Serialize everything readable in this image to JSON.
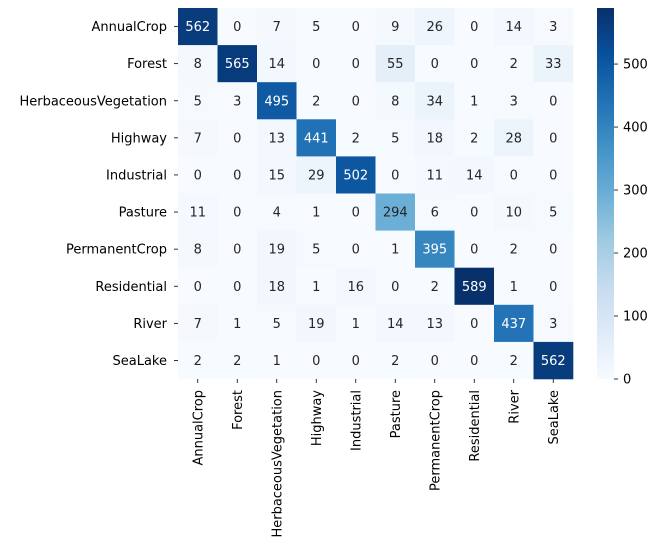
{
  "chart_data": {
    "type": "heatmap",
    "title": "",
    "xlabel": "",
    "ylabel": "",
    "x_labels": [
      "AnnualCrop",
      "Forest",
      "HerbaceousVegetation",
      "Highway",
      "Industrial",
      "Pasture",
      "PermanentCrop",
      "Residential",
      "River",
      "SeaLake"
    ],
    "y_labels": [
      "AnnualCrop",
      "Forest",
      "HerbaceousVegetation",
      "Highway",
      "Industrial",
      "Pasture",
      "PermanentCrop",
      "Residential",
      "River",
      "SeaLake"
    ],
    "values": [
      [
        562,
        0,
        7,
        5,
        0,
        9,
        26,
        0,
        14,
        3
      ],
      [
        8,
        565,
        14,
        0,
        0,
        55,
        0,
        0,
        2,
        33
      ],
      [
        5,
        3,
        495,
        2,
        0,
        8,
        34,
        1,
        3,
        0
      ],
      [
        7,
        0,
        13,
        441,
        2,
        5,
        18,
        2,
        28,
        0
      ],
      [
        0,
        0,
        15,
        29,
        502,
        0,
        11,
        14,
        0,
        0
      ],
      [
        11,
        0,
        4,
        1,
        0,
        294,
        6,
        0,
        10,
        5
      ],
      [
        8,
        0,
        19,
        5,
        0,
        1,
        395,
        0,
        2,
        0
      ],
      [
        0,
        0,
        18,
        1,
        16,
        0,
        2,
        589,
        1,
        0
      ],
      [
        7,
        1,
        5,
        19,
        1,
        14,
        13,
        0,
        437,
        3
      ],
      [
        2,
        2,
        1,
        0,
        0,
        2,
        0,
        0,
        2,
        562
      ]
    ],
    "colormap": "Blues",
    "color_range": [
      0,
      589
    ],
    "colorbar": {
      "ticks": [
        0,
        100,
        200,
        300,
        400,
        500
      ],
      "tick_labels": [
        "0",
        "100",
        "200",
        "300",
        "400",
        "500"
      ]
    },
    "annotated": true,
    "grid": false
  }
}
